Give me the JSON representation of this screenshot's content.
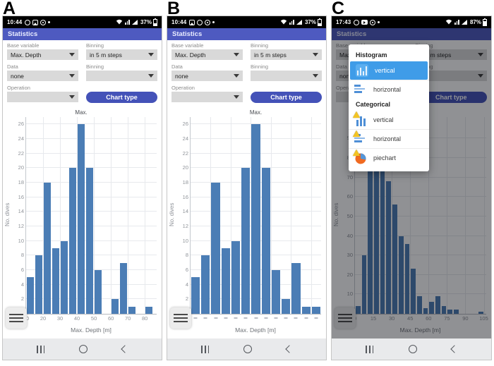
{
  "colors": {
    "app_header_bg": "#4e5ac0",
    "chart_type_button_bg": "#4452b8",
    "bar_fill": "#4b7db5",
    "popup_selected_bg": "#3f9ce8",
    "dim_overlay": "rgba(8,10,18,0.45)"
  },
  "panels": [
    {
      "label": "A",
      "dimmed": false,
      "chart_index": 0,
      "status": {
        "time": "10:44",
        "battery": "37%",
        "left_icons": [
          "whatsapp-icon",
          "gallery-icon",
          "chrome-icon",
          "notification-dot-icon"
        ],
        "right_icons": [
          "wifi-icon",
          "mobile-data-icon",
          "signal-icon"
        ]
      },
      "header": {
        "title": "Statistics"
      },
      "form": {
        "base_variable_label": "Base variable",
        "base_variable_value": "Max. Depth",
        "binning1_label": "Binning",
        "binning1_value": "in 5 m steps",
        "data_label": "Data",
        "data_value": "none",
        "binning2_label": "Binning",
        "binning2_value": "",
        "operation_label": "Operation",
        "operation_value": "",
        "chart_type_button": "Chart type"
      }
    },
    {
      "label": "B",
      "dimmed": false,
      "chart_index": 1,
      "status": {
        "time": "10:44",
        "battery": "37%",
        "left_icons": [
          "gallery-icon",
          "whatsapp-icon",
          "chrome-icon",
          "notification-dot-icon"
        ],
        "right_icons": [
          "wifi-icon",
          "mobile-data-icon",
          "signal-icon"
        ]
      },
      "header": {
        "title": "Statistics"
      },
      "form": {
        "base_variable_label": "Base variable",
        "base_variable_value": "Max. Depth",
        "binning1_label": "Binning",
        "binning1_value": "in 5 m steps",
        "data_label": "Data",
        "data_value": "none",
        "binning2_label": "Binning",
        "binning2_value": "",
        "operation_label": "Operation",
        "operation_value": "",
        "chart_type_button": "Chart type"
      }
    },
    {
      "label": "C",
      "dimmed": true,
      "chart_index": 2,
      "status": {
        "time": "17:43",
        "battery": "87%",
        "left_icons": [
          "whatsapp-icon",
          "youtube-icon",
          "media-icon",
          "notification-dot-icon"
        ],
        "right_icons": [
          "wifi-icon",
          "mobile-data-icon",
          "signal-icon"
        ]
      },
      "header": {
        "title": "Statistics"
      },
      "form": {
        "base_variable_label": "Base variable",
        "base_variable_value": "Max. Depth",
        "binning1_label": "Binning",
        "binning1_value": "in 5 m steps",
        "data_label": "Data",
        "data_value": "none",
        "binning2_label": "Binning",
        "binning2_value": "",
        "operation_label": "Operation",
        "operation_value": "",
        "chart_type_button": "Chart type"
      }
    }
  ],
  "popup": {
    "sections": [
      {
        "title": "Histogram",
        "items": [
          {
            "label": "vertical",
            "icon": "histogram-vertical-icon",
            "selected": true
          },
          {
            "label": "horizontal",
            "icon": "histogram-horizontal-icon",
            "selected": false
          }
        ]
      },
      {
        "title": "Categorical",
        "items": [
          {
            "label": "vertical",
            "icon": "categorical-vertical-icon",
            "selected": false
          },
          {
            "label": "horizontal",
            "icon": "categorical-horizontal-icon",
            "selected": false
          },
          {
            "label": "piechart",
            "icon": "categorical-piechart-icon",
            "selected": false
          }
        ]
      }
    ]
  },
  "chart_data": [
    {
      "type": "bar",
      "title": "",
      "xlabel": "Max. Depth [m]",
      "ylabel": "No. dives",
      "x_mode": "linear",
      "bin_start": 10,
      "bin_width": 5,
      "xmin": 10,
      "xmax": 87,
      "values": [
        5,
        8,
        18,
        9,
        10,
        20,
        26,
        20,
        6,
        0,
        2,
        7,
        1,
        0,
        1
      ],
      "xticks": [
        10,
        20,
        30,
        40,
        50,
        60,
        70,
        80
      ],
      "vgrid": [
        20,
        30,
        40,
        50,
        60,
        70,
        80
      ],
      "yticks": [
        0,
        2,
        4,
        6,
        8,
        10,
        12,
        14,
        16,
        18,
        20,
        22,
        24,
        26
      ],
      "ylim": [
        0,
        27
      ],
      "annotation": {
        "text": "Max.",
        "bar_index": 6
      }
    },
    {
      "type": "bar",
      "title": "",
      "xlabel": "Max. Depth [m]",
      "ylabel": "No. dives",
      "x_mode": "category",
      "values": [
        5,
        8,
        18,
        9,
        10,
        20,
        26,
        20,
        6,
        2,
        7,
        1,
        1
      ],
      "xtick_style": "dash",
      "vgrid_every": 2,
      "yticks": [
        0,
        2,
        4,
        6,
        8,
        10,
        12,
        14,
        16,
        18,
        20,
        22,
        24,
        26
      ],
      "ylim": [
        0,
        27
      ],
      "annotation": {
        "text": "Max.",
        "bar_index": 6
      }
    },
    {
      "type": "bar",
      "title": "",
      "xlabel": "Max. Depth [m]",
      "ylabel": "No. dives",
      "x_mode": "linear",
      "bin_start": 0,
      "bin_width": 5,
      "xmin": 0,
      "xmax": 107,
      "values": [
        4,
        30,
        92,
        97,
        97,
        68,
        56,
        40,
        36,
        23,
        9,
        3,
        6,
        9,
        4,
        2,
        2,
        0,
        0,
        0,
        1
      ],
      "xticks": [
        0,
        15,
        30,
        45,
        60,
        75,
        90,
        105
      ],
      "vgrid": [
        15,
        30,
        45,
        60,
        75,
        90,
        105
      ],
      "yticks": [
        0,
        10,
        20,
        30,
        40,
        50,
        60,
        70,
        80,
        90
      ],
      "ylim": [
        0,
        101
      ],
      "annotation": null
    }
  ]
}
